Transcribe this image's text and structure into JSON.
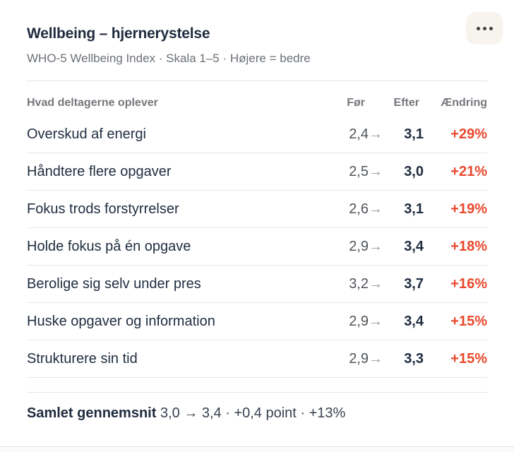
{
  "card": {
    "title": "Wellbeing – hjernerystelse",
    "subtitle": "WHO-5 Wellbeing Index · Skala 1–5 · Højere = bedre"
  },
  "table": {
    "arrow": "→",
    "headers": {
      "item": "Hvad deltagerne oplever",
      "before": "Før",
      "after": "Efter",
      "change": "Ændring"
    },
    "rows": [
      {
        "label": "Overskud af energi",
        "before": "2,4",
        "after": "3,1",
        "change": "+29%"
      },
      {
        "label": "Håndtere flere opgaver",
        "before": "2,5",
        "after": "3,0",
        "change": "+21%"
      },
      {
        "label": "Fokus trods forstyrrelser",
        "before": "2,6",
        "after": "3,1",
        "change": "+19%"
      },
      {
        "label": "Holde fokus på én opgave",
        "before": "2,9",
        "after": "3,4",
        "change": "+18%"
      },
      {
        "label": "Berolige sig selv under pres",
        "before": "3,2",
        "after": "3,7",
        "change": "+16%"
      },
      {
        "label": "Huske opgaver og information",
        "before": "2,9",
        "after": "3,4",
        "change": "+15%"
      },
      {
        "label": "Strukturere sin tid",
        "before": "2,9",
        "after": "3,3",
        "change": "+15%"
      }
    ]
  },
  "summary": {
    "label": "Samlet gennemsnit",
    "text": "3,0 → 3,4 · +0,4 point · +13%"
  },
  "colors": {
    "title_navy": "#1F2B3E",
    "change_red": "#E8482C",
    "before_gray": "#505459",
    "header_gray": "#75787D",
    "menu_bg": "#F7F4ED"
  }
}
